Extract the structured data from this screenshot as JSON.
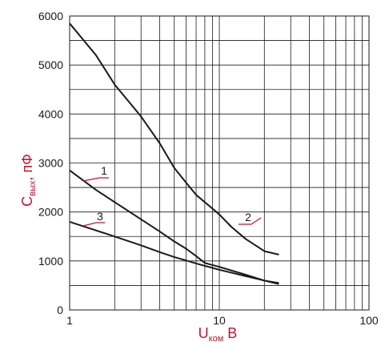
{
  "chart_data": {
    "type": "line",
    "xscale": "log",
    "xlim": [
      1,
      100
    ],
    "ylim": [
      0,
      6000
    ],
    "grid": true,
    "xlabel": {
      "main": "U",
      "sub": "ком",
      "unit": " В"
    },
    "ylabel": {
      "main": "C",
      "sub": "вых",
      "unit": ", пФ"
    },
    "xtick_labels": [
      "1",
      "10",
      "100"
    ],
    "ytick_labels": [
      "0",
      "1000",
      "2000",
      "3000",
      "4000",
      "5000",
      "6000"
    ],
    "colors": {
      "curve": "#1a1a1a",
      "grid": "#1a1a1a",
      "labels": "#c8102e",
      "leader": "#c8102e"
    },
    "series": [
      {
        "label": "1",
        "x": [
          1,
          1.5,
          2,
          3,
          4,
          5,
          6,
          7,
          8,
          10,
          15,
          20,
          25
        ],
        "y": [
          2850,
          2450,
          2200,
          1850,
          1600,
          1400,
          1250,
          1100,
          960,
          880,
          720,
          600,
          530
        ]
      },
      {
        "label": "2",
        "x": [
          1,
          1.5,
          2,
          3,
          4,
          5,
          6,
          7,
          8,
          10,
          12,
          15,
          20,
          25
        ],
        "y": [
          5850,
          5200,
          4600,
          3950,
          3400,
          2900,
          2600,
          2350,
          2200,
          1950,
          1700,
          1450,
          1200,
          1130
        ]
      },
      {
        "label": "3",
        "x": [
          1,
          2,
          3,
          4,
          5,
          6,
          7,
          8,
          10,
          15,
          20,
          25
        ],
        "y": [
          1800,
          1500,
          1320,
          1180,
          1080,
          1010,
          950,
          900,
          820,
          690,
          600,
          550
        ]
      }
    ]
  }
}
